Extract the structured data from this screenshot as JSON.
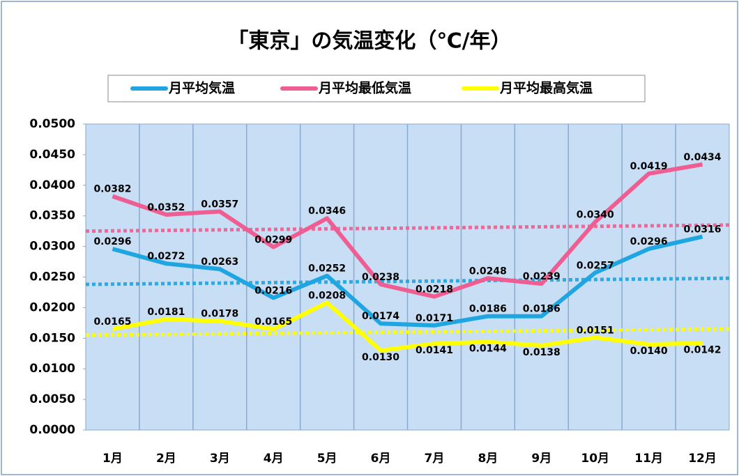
{
  "chart_data": {
    "type": "line",
    "title": "「東京」の気温変化（℃/年）",
    "categories": [
      "1月",
      "2月",
      "3月",
      "4月",
      "5月",
      "6月",
      "7月",
      "8月",
      "9月",
      "10月",
      "11月",
      "12月"
    ],
    "series": [
      {
        "name": "月平均気温",
        "color": "#1fa5e0",
        "values": [
          0.0296,
          0.0272,
          0.0263,
          0.0216,
          0.0252,
          0.0174,
          0.0171,
          0.0186,
          0.0186,
          0.0257,
          0.0296,
          0.0316
        ],
        "value_labels": [
          "0.0296",
          "0.0272",
          "0.0263",
          "0.0216",
          "0.0252",
          "0.0174",
          "0.0171",
          "0.0186",
          "0.0186",
          "0.0257",
          "0.0296",
          "0.0316"
        ],
        "trend": [
          0.0238,
          0.0248
        ]
      },
      {
        "name": "月平均最低気温",
        "color": "#ef5e93",
        "values": [
          0.0382,
          0.0352,
          0.0357,
          0.0299,
          0.0346,
          0.0238,
          0.0218,
          0.0248,
          0.0239,
          0.034,
          0.0419,
          0.0434
        ],
        "value_labels": [
          "0.0382",
          "0.0352",
          "0.0357",
          "0.0299",
          "0.0346",
          "0.0238",
          "0.0218",
          "0.0248",
          "0.0239",
          "0.0340",
          "0.0419",
          "0.0434"
        ],
        "trend": [
          0.0325,
          0.0335
        ]
      },
      {
        "name": "月平均最高気温",
        "color": "#ffff00",
        "values": [
          0.0165,
          0.0181,
          0.0178,
          0.0165,
          0.0208,
          0.013,
          0.0141,
          0.0144,
          0.0138,
          0.0151,
          0.014,
          0.0142
        ],
        "value_labels": [
          "0.0165",
          "0.0181",
          "0.0178",
          "0.0165",
          "0.0208",
          "0.0130",
          "0.0141",
          "0.0144",
          "0.0138",
          "0.0151",
          "0.0140",
          "0.0142"
        ],
        "trend": [
          0.0155,
          0.0165
        ]
      }
    ],
    "ylim": [
      0,
      0.05
    ],
    "yticks": [
      {
        "value": 0,
        "label": "0.0000"
      },
      {
        "value": 0.005,
        "label": "0.0050"
      },
      {
        "value": 0.01,
        "label": "0.0100"
      },
      {
        "value": 0.015,
        "label": "0.0150"
      },
      {
        "value": 0.02,
        "label": "0.0200"
      },
      {
        "value": 0.025,
        "label": "0.0250"
      },
      {
        "value": 0.03,
        "label": "0.0300"
      },
      {
        "value": 0.035,
        "label": "0.0350"
      },
      {
        "value": 0.04,
        "label": "0.0400"
      },
      {
        "value": 0.045,
        "label": "0.0450"
      },
      {
        "value": 0.05,
        "label": "0.0500"
      }
    ],
    "grid": "x",
    "legend": "top"
  }
}
